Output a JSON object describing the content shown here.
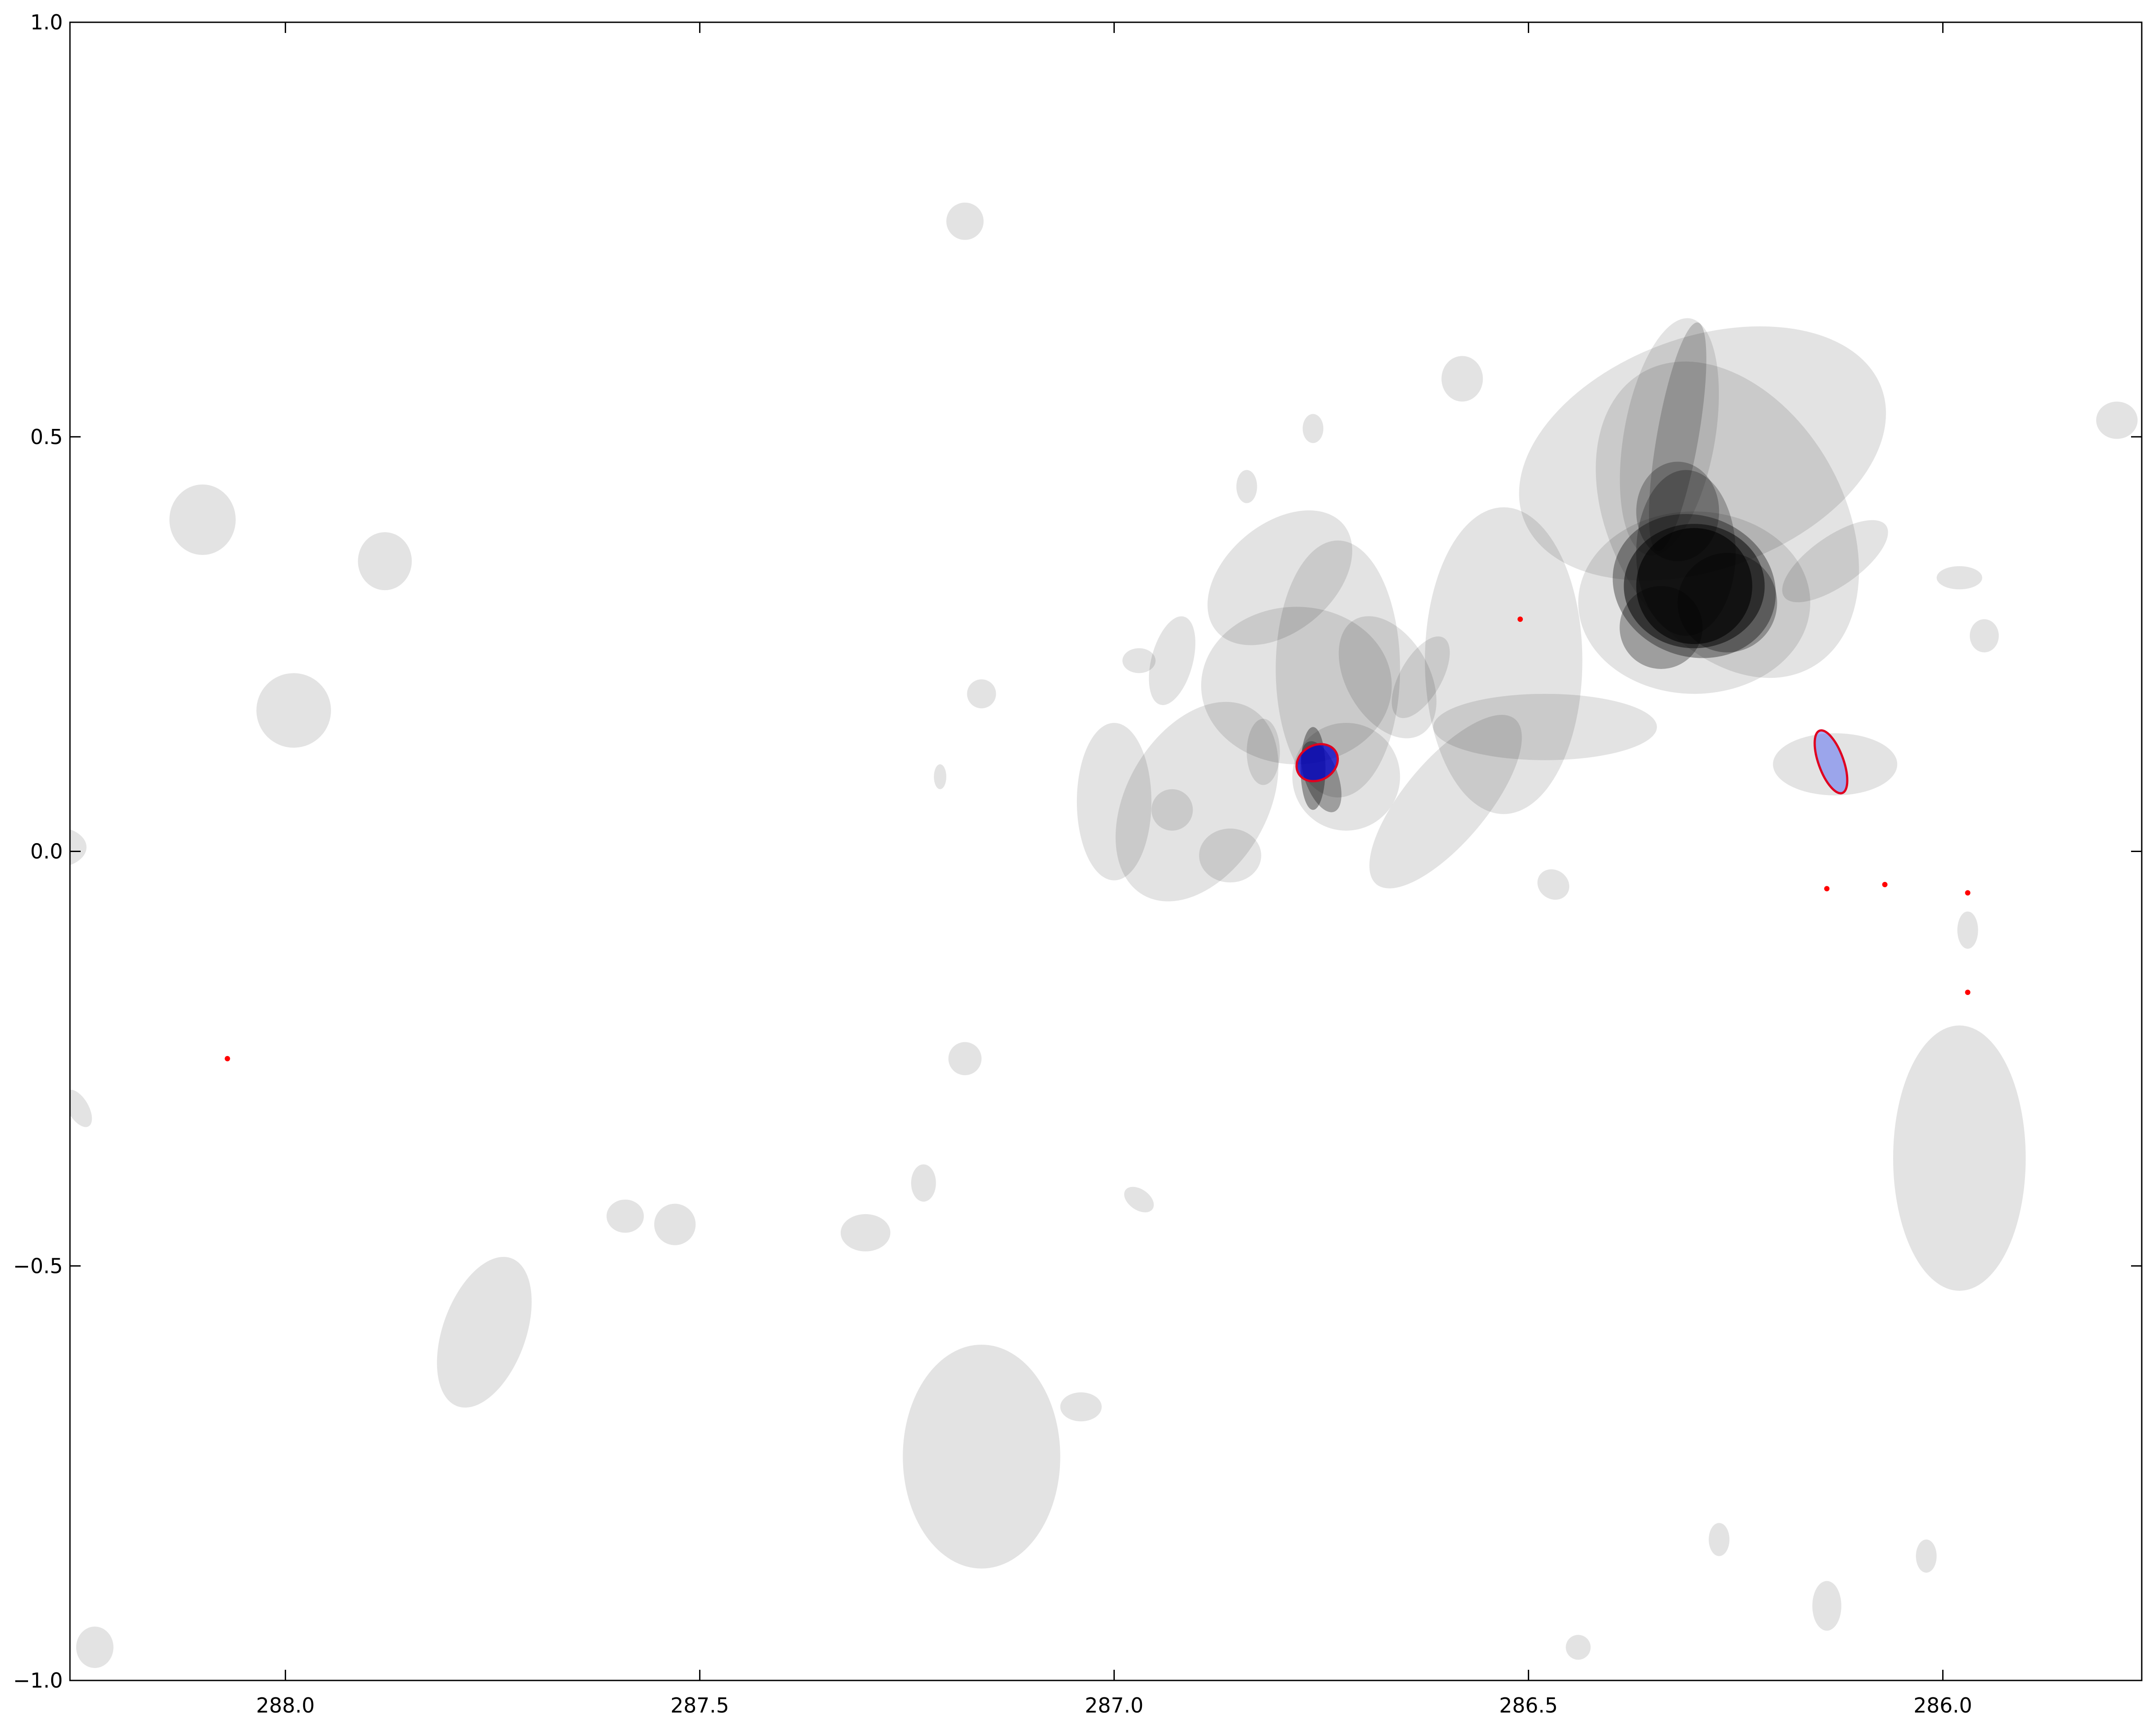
{
  "chart_data": {
    "type": "scatter",
    "title": "",
    "xlabel": "",
    "ylabel": "",
    "xlim": [
      288.26,
      285.76
    ],
    "ylim": [
      -1.0,
      1.0
    ],
    "x_inverted": true,
    "grid": false,
    "legend": "none",
    "xticks": [
      {
        "value": 288.0,
        "label": "288.0"
      },
      {
        "value": 287.5,
        "label": "287.5"
      },
      {
        "value": 287.0,
        "label": "287.0"
      },
      {
        "value": 286.5,
        "label": "286.5"
      },
      {
        "value": 286.0,
        "label": "286.0"
      }
    ],
    "yticks": [
      {
        "value": 1.0,
        "label": "1.0"
      },
      {
        "value": 0.5,
        "label": "0.5"
      },
      {
        "value": 0.0,
        "label": "0.0"
      },
      {
        "value": -0.5,
        "label": "−0.5"
      },
      {
        "value": -1.0,
        "label": "−1.0"
      }
    ],
    "colors": {
      "background_source": "#000000",
      "highlight_fill": "#0000cc",
      "highlight_fill_light": "#6a7cf0",
      "highlight_edge": "#e00020",
      "marker": "#ff0000"
    },
    "series": [
      {
        "kind": "source_ellipses",
        "ellipses": [
          {
            "x": 287.18,
            "y": 0.76,
            "w": 0.045,
            "h": 0.045,
            "angle": 0,
            "alpha": 0.11
          },
          {
            "x": 288.1,
            "y": 0.4,
            "w": 0.08,
            "h": 0.085,
            "angle": 0,
            "alpha": 0.11
          },
          {
            "x": 287.88,
            "y": 0.35,
            "w": 0.065,
            "h": 0.07,
            "angle": 0,
            "alpha": 0.11
          },
          {
            "x": 287.99,
            "y": 0.17,
            "w": 0.09,
            "h": 0.09,
            "angle": -35,
            "alpha": 0.11
          },
          {
            "x": 288.28,
            "y": 0.005,
            "w": 0.08,
            "h": 0.05,
            "angle": 0,
            "alpha": 0.11
          },
          {
            "x": 288.25,
            "y": -0.31,
            "w": 0.025,
            "h": 0.05,
            "angle": -30,
            "alpha": 0.11
          },
          {
            "x": 287.76,
            "y": -0.58,
            "w": 0.1,
            "h": 0.19,
            "angle": 20,
            "alpha": 0.11
          },
          {
            "x": 287.59,
            "y": -0.44,
            "w": 0.045,
            "h": 0.04,
            "angle": 0,
            "alpha": 0.11
          },
          {
            "x": 287.53,
            "y": -0.45,
            "w": 0.05,
            "h": 0.05,
            "angle": -35,
            "alpha": 0.11
          },
          {
            "x": 287.16,
            "y": -0.73,
            "w": 0.19,
            "h": 0.27,
            "angle": 0,
            "alpha": 0.11
          },
          {
            "x": 287.3,
            "y": -0.46,
            "w": 0.06,
            "h": 0.045,
            "angle": 0,
            "alpha": 0.11
          },
          {
            "x": 287.23,
            "y": -0.4,
            "w": 0.03,
            "h": 0.045,
            "angle": 0,
            "alpha": 0.11
          },
          {
            "x": 287.18,
            "y": -0.25,
            "w": 0.04,
            "h": 0.04,
            "angle": 0,
            "alpha": 0.11
          },
          {
            "x": 287.04,
            "y": -0.67,
            "w": 0.05,
            "h": 0.035,
            "angle": 0,
            "alpha": 0.11
          },
          {
            "x": 286.97,
            "y": -0.42,
            "w": 0.04,
            "h": 0.025,
            "angle": 35,
            "alpha": 0.11
          },
          {
            "x": 287.16,
            "y": 0.19,
            "w": 0.035,
            "h": 0.035,
            "angle": 0,
            "alpha": 0.11
          },
          {
            "x": 287.21,
            "y": 0.09,
            "w": 0.015,
            "h": 0.03,
            "angle": 0,
            "alpha": 0.11
          },
          {
            "x": 286.9,
            "y": 0.06,
            "w": 0.17,
            "h": 0.26,
            "angle": 30,
            "alpha": 0.11
          },
          {
            "x": 287.0,
            "y": 0.06,
            "w": 0.09,
            "h": 0.19,
            "angle": 0,
            "alpha": 0.11
          },
          {
            "x": 286.97,
            "y": 0.23,
            "w": 0.04,
            "h": 0.03,
            "angle": 0,
            "alpha": 0.11
          },
          {
            "x": 286.93,
            "y": 0.23,
            "w": 0.05,
            "h": 0.11,
            "angle": 15,
            "alpha": 0.11
          },
          {
            "x": 286.78,
            "y": 0.2,
            "w": 0.23,
            "h": 0.19,
            "angle": 0,
            "alpha": 0.11
          },
          {
            "x": 286.8,
            "y": 0.33,
            "w": 0.13,
            "h": 0.2,
            "angle": 50,
            "alpha": 0.11
          },
          {
            "x": 286.73,
            "y": 0.22,
            "w": 0.15,
            "h": 0.31,
            "angle": 0,
            "alpha": 0.11
          },
          {
            "x": 286.72,
            "y": 0.09,
            "w": 0.13,
            "h": 0.13,
            "angle": 0,
            "alpha": 0.11
          },
          {
            "x": 286.67,
            "y": 0.21,
            "w": 0.1,
            "h": 0.16,
            "angle": -30,
            "alpha": 0.11
          },
          {
            "x": 286.63,
            "y": 0.21,
            "w": 0.05,
            "h": 0.11,
            "angle": 30,
            "alpha": 0.11
          },
          {
            "x": 286.6,
            "y": 0.06,
            "w": 0.1,
            "h": 0.26,
            "angle": 40,
            "alpha": 0.11
          },
          {
            "x": 286.82,
            "y": 0.12,
            "w": 0.04,
            "h": 0.08,
            "angle": 0,
            "alpha": 0.11
          },
          {
            "x": 286.86,
            "y": -0.005,
            "w": 0.075,
            "h": 0.065,
            "angle": 0,
            "alpha": 0.11
          },
          {
            "x": 286.93,
            "y": 0.05,
            "w": 0.05,
            "h": 0.05,
            "angle": 0,
            "alpha": 0.11
          },
          {
            "x": 286.84,
            "y": 0.44,
            "w": 0.025,
            "h": 0.04,
            "angle": 0,
            "alpha": 0.11
          },
          {
            "x": 286.76,
            "y": 0.51,
            "w": 0.025,
            "h": 0.035,
            "angle": 0,
            "alpha": 0.11
          },
          {
            "x": 286.53,
            "y": 0.23,
            "w": 0.19,
            "h": 0.37,
            "angle": 0,
            "alpha": 0.11
          },
          {
            "x": 286.48,
            "y": 0.15,
            "w": 0.27,
            "h": 0.08,
            "angle": 0,
            "alpha": 0.11
          },
          {
            "x": 286.29,
            "y": 0.48,
            "w": 0.46,
            "h": 0.28,
            "angle": -20,
            "alpha": 0.11
          },
          {
            "x": 286.26,
            "y": 0.4,
            "w": 0.28,
            "h": 0.41,
            "angle": -30,
            "alpha": 0.11
          },
          {
            "x": 286.33,
            "y": 0.5,
            "w": 0.11,
            "h": 0.29,
            "angle": 10,
            "alpha": 0.11
          },
          {
            "x": 286.3,
            "y": 0.3,
            "w": 0.28,
            "h": 0.22,
            "angle": 0,
            "alpha": 0.11
          },
          {
            "x": 286.13,
            "y": 0.35,
            "w": 0.06,
            "h": 0.15,
            "angle": 55,
            "alpha": 0.11
          },
          {
            "x": 286.13,
            "y": 0.105,
            "w": 0.15,
            "h": 0.075,
            "angle": 0,
            "alpha": 0.11
          },
          {
            "x": 286.47,
            "y": -0.04,
            "w": 0.04,
            "h": 0.035,
            "angle": 35,
            "alpha": 0.11
          },
          {
            "x": 286.58,
            "y": 0.57,
            "w": 0.05,
            "h": 0.055,
            "angle": 0,
            "alpha": 0.11
          },
          {
            "x": 285.98,
            "y": 0.33,
            "w": 0.055,
            "h": 0.028,
            "angle": 0,
            "alpha": 0.11
          },
          {
            "x": 285.95,
            "y": 0.26,
            "w": 0.035,
            "h": 0.04,
            "angle": 0,
            "alpha": 0.11
          },
          {
            "x": 285.79,
            "y": 0.52,
            "w": 0.05,
            "h": 0.045,
            "angle": 0,
            "alpha": 0.11
          },
          {
            "x": 285.97,
            "y": -0.095,
            "w": 0.025,
            "h": 0.045,
            "angle": 0,
            "alpha": 0.11
          },
          {
            "x": 285.98,
            "y": -0.37,
            "w": 0.16,
            "h": 0.32,
            "angle": 0,
            "alpha": 0.11
          },
          {
            "x": 286.02,
            "y": -0.85,
            "w": 0.025,
            "h": 0.04,
            "angle": 0,
            "alpha": 0.11
          },
          {
            "x": 286.14,
            "y": -0.91,
            "w": 0.035,
            "h": 0.06,
            "angle": 0,
            "alpha": 0.11
          },
          {
            "x": 286.27,
            "y": -0.83,
            "w": 0.025,
            "h": 0.04,
            "angle": 0,
            "alpha": 0.11
          },
          {
            "x": 286.44,
            "y": -0.96,
            "w": 0.03,
            "h": 0.03,
            "angle": 0,
            "alpha": 0.11
          },
          {
            "x": 288.23,
            "y": -0.96,
            "w": 0.045,
            "h": 0.05,
            "angle": 0,
            "alpha": 0.11
          },
          {
            "x": 286.3,
            "y": 0.32,
            "w": 0.14,
            "h": 0.14,
            "angle": 0,
            "alpha": 0.6
          },
          {
            "x": 286.3,
            "y": 0.32,
            "w": 0.17,
            "h": 0.15,
            "angle": 0,
            "alpha": 0.5
          },
          {
            "x": 286.3,
            "y": 0.32,
            "w": 0.2,
            "h": 0.17,
            "angle": 20,
            "alpha": 0.35
          },
          {
            "x": 286.31,
            "y": 0.36,
            "w": 0.12,
            "h": 0.2,
            "angle": 0,
            "alpha": 0.25
          },
          {
            "x": 286.32,
            "y": 0.5,
            "w": 0.05,
            "h": 0.28,
            "angle": 10,
            "alpha": 0.18
          },
          {
            "x": 286.32,
            "y": 0.41,
            "w": 0.1,
            "h": 0.12,
            "angle": 0,
            "alpha": 0.25
          },
          {
            "x": 286.26,
            "y": 0.3,
            "w": 0.12,
            "h": 0.12,
            "angle": 0,
            "alpha": 0.3
          },
          {
            "x": 286.34,
            "y": 0.27,
            "w": 0.1,
            "h": 0.1,
            "angle": 0,
            "alpha": 0.3
          },
          {
            "x": 286.76,
            "y": 0.1,
            "w": 0.03,
            "h": 0.1,
            "angle": 0,
            "alpha": 0.35
          },
          {
            "x": 286.75,
            "y": 0.09,
            "w": 0.04,
            "h": 0.09,
            "angle": -20,
            "alpha": 0.3
          }
        ]
      },
      {
        "kind": "highlighted_sources",
        "ellipses": [
          {
            "x": 286.755,
            "y": 0.107,
            "w": 0.052,
            "h": 0.042,
            "angle": -30,
            "style": "dark"
          },
          {
            "x": 286.135,
            "y": 0.108,
            "w": 0.03,
            "h": 0.08,
            "angle": -20,
            "style": "light"
          }
        ]
      },
      {
        "kind": "markers",
        "points": [
          {
            "x": 288.07,
            "y": -0.25
          },
          {
            "x": 286.51,
            "y": 0.28
          },
          {
            "x": 286.14,
            "y": -0.045
          },
          {
            "x": 286.07,
            "y": -0.04
          },
          {
            "x": 285.97,
            "y": -0.05
          },
          {
            "x": 285.97,
            "y": -0.17
          }
        ]
      }
    ]
  }
}
